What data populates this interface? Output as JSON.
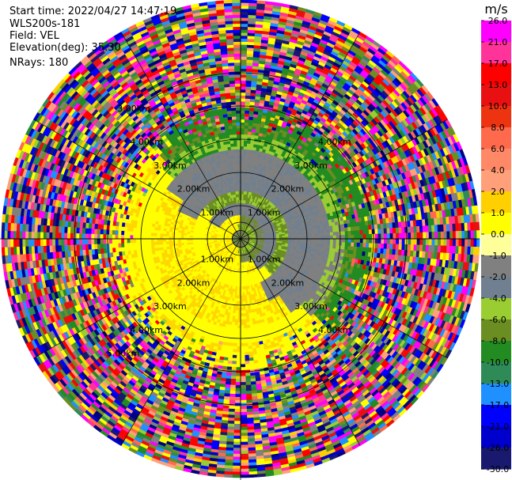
{
  "header": {
    "start_time": "Start time: 2022/04/27 14:47:19",
    "instrument": "WLS200s-181",
    "field": "Field: VEL",
    "elevation": "Elevation(deg): 35.30",
    "nrays": "NRays: 180"
  },
  "chart_data": {
    "type": "heatmap",
    "projection": "polar PPI",
    "field": "VEL",
    "units": "m/s",
    "nrays": 180,
    "elevation_deg": 35.3,
    "range_rings": [
      {
        "label": "1.00km",
        "positions": [
          "nw",
          "ne",
          "sw",
          "se"
        ]
      },
      {
        "label": "2.00km",
        "positions": [
          "nw",
          "ne",
          "sw",
          "se"
        ]
      },
      {
        "label": "3.00km",
        "positions": [
          "nw",
          "ne",
          "sw",
          "se"
        ]
      },
      {
        "label": "4.00km",
        "positions": [
          "nw",
          "ne",
          "sw",
          "se"
        ]
      },
      {
        "label": "5.00km",
        "positions": [
          "nw",
          "ne",
          "sw",
          "se"
        ]
      }
    ],
    "ring_labels_visible": [
      {
        "text": "1.00km",
        "quad": "nw"
      },
      {
        "text": "1.00km",
        "quad": "ne"
      },
      {
        "text": "1.00km",
        "quad": "sw"
      },
      {
        "text": "1.00km",
        "quad": "se"
      },
      {
        "text": "2.00km",
        "quad": "nw"
      },
      {
        "text": "2.00km",
        "quad": "ne"
      },
      {
        "text": "2.00km",
        "quad": "sw"
      },
      {
        "text": "2.00km",
        "quad": "se"
      },
      {
        "text": "3.00km",
        "quad": "nw"
      },
      {
        "text": "3.00km",
        "quad": "ne"
      },
      {
        "text": "3.00km",
        "quad": "sw"
      },
      {
        "text": "3.00km",
        "quad": "se"
      },
      {
        "text": "3.00km",
        "quad": "nw-outer"
      },
      {
        "text": "4.00km",
        "quad": "nw"
      },
      {
        "text": "4.00km",
        "quad": "ne"
      },
      {
        "text": "4.00km",
        "quad": "sw"
      },
      {
        "text": "4.00km",
        "quad": "se"
      },
      {
        "text": "5.00km",
        "quad": "sw"
      }
    ],
    "colorbar": {
      "title": "m/s",
      "ticks": [
        "26.0",
        "21.0",
        "17.0",
        "13.0",
        "10.0",
        "8.0",
        "6.0",
        "4.0",
        "2.0",
        "1.0",
        "0.0",
        "-1.0",
        "-2.0",
        "-4.0",
        "-6.0",
        "-8.0",
        "-10.0",
        "-13.0",
        "-17.0",
        "-21.0",
        "-26.0",
        "-30.0"
      ],
      "colors": [
        "#ff00ff",
        "#ff3399",
        "#ff0000",
        "#e81010",
        "#ee3311",
        "#ff6a4d",
        "#ff8866",
        "#ffa07a",
        "#ffd000",
        "#ffff00",
        "#ffff99",
        "#808080",
        "#708090",
        "#9acd32",
        "#6b8e23",
        "#228b22",
        "#2e8b57",
        "#1e90ff",
        "#0000ff",
        "#0000cd",
        "#191970",
        "#000080"
      ],
      "range": [
        -30.0,
        26.0
      ]
    },
    "regions": [
      {
        "range_km": [
          0,
          0.6
        ],
        "description": "near-zero velocities"
      },
      {
        "range_km": [
          0.6,
          2.0
        ],
        "description": "positive velocities to west/south-west, negative to east/north"
      },
      {
        "range_km": [
          2.0,
          3.6
        ],
        "description": "positive (yellow) south-west, negative (green) north-east"
      },
      {
        "range_km": [
          3.6,
          6.3
        ],
        "description": "noise / aliased mixed colors"
      }
    ]
  }
}
